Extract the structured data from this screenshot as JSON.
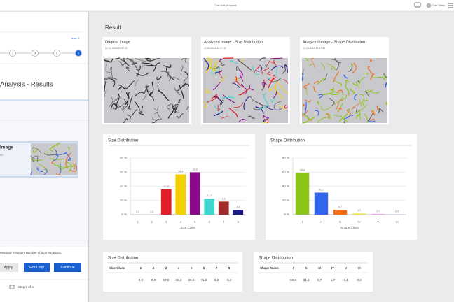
{
  "header": {
    "title": "Carl Axis Analysis",
    "user": "Carl Zeiss"
  },
  "sidebar": {
    "max": "max 5",
    "steps": [
      "3",
      "4",
      "5",
      "6"
    ],
    "heading": "Analysis - Results",
    "item": {
      "title": "Image",
      "subtitle": "00"
    },
    "hint": "required minimum number of loop iterations.",
    "buttons": [
      "Apply",
      "Exit Loop",
      "Continue"
    ],
    "step": "Step 6 of 6"
  },
  "main": {
    "title": "Result",
    "images": [
      {
        "title": "Original Image",
        "date": "09.04.2018 12:57:30"
      },
      {
        "title": "Analyzed Image - Size Distribution",
        "date": "09.04.2018 12:57:30"
      },
      {
        "title": "Analyzed Image - Shape Distribution",
        "date": "09.04.2018 12:57:30"
      }
    ]
  },
  "chart_data": [
    {
      "type": "bar",
      "title": "Size Distribution",
      "xlabel": "Size Class",
      "categories": [
        "1",
        "2",
        "3",
        "4",
        "5",
        "6",
        "7",
        "8"
      ],
      "values": [
        0.0,
        0.0,
        17.9,
        28.4,
        29.9,
        11.2,
        9.2,
        3.4
      ],
      "value_labels": [
        "0,0",
        "0,0",
        "17,9",
        "28,4",
        "29,9",
        "11,2",
        "9,2",
        "3,4"
      ],
      "colors": [
        "#e01f26",
        "#e01f26",
        "#e01f26",
        "#f5d000",
        "#8b0a8b",
        "#3fd6d0",
        "#a02a2a",
        "#1a1a8a"
      ],
      "ylim": [
        0,
        40
      ],
      "yticks": [
        {
          "value": 0,
          "label": "0 %"
        },
        {
          "value": 10,
          "label": "10 %"
        },
        {
          "value": 20,
          "label": "20 %"
        },
        {
          "value": 30,
          "label": "30 %"
        },
        {
          "value": 40,
          "label": "40 %"
        }
      ],
      "grid": true
    },
    {
      "type": "bar",
      "title": "Shape Distribution",
      "xlabel": "Shape Class",
      "categories": [
        "I",
        "II",
        "III",
        "IV",
        "V",
        "VI"
      ],
      "values": [
        58.8,
        31.1,
        6.7,
        1.7,
        1.1,
        0.4
      ],
      "value_labels": [
        "58,8",
        "31,1",
        "6,7",
        "1,7",
        "1,1",
        "0,4"
      ],
      "colors": [
        "#8cc41a",
        "#3366ee",
        "#f07020",
        "#f5e060",
        "#f0a0f0",
        "#a0c0f0"
      ],
      "ylim": [
        0,
        80
      ],
      "yticks": [
        {
          "value": 0,
          "label": "0 %"
        },
        {
          "value": 20,
          "label": "20 %"
        },
        {
          "value": 40,
          "label": "40 %"
        },
        {
          "value": 60,
          "label": "60 %"
        },
        {
          "value": 80,
          "label": "80 %"
        }
      ],
      "grid": true
    }
  ],
  "tables": [
    {
      "title": "Size Distribution",
      "columns": [
        "Size Class",
        "1",
        "2",
        "3",
        "4",
        "5",
        "6",
        "7",
        "8"
      ],
      "values": [
        "0,0",
        "0,0",
        "17,9",
        "28,4",
        "29,9",
        "11,2",
        "9,2",
        "3,4"
      ]
    },
    {
      "title": "Shape Distribution",
      "columns": [
        "Shape Class",
        "I",
        "II",
        "III",
        "IV",
        "V",
        "VI"
      ],
      "values": [
        "58,8",
        "31,1",
        "6,7",
        "1,7",
        "1,1",
        "0,4"
      ]
    }
  ]
}
